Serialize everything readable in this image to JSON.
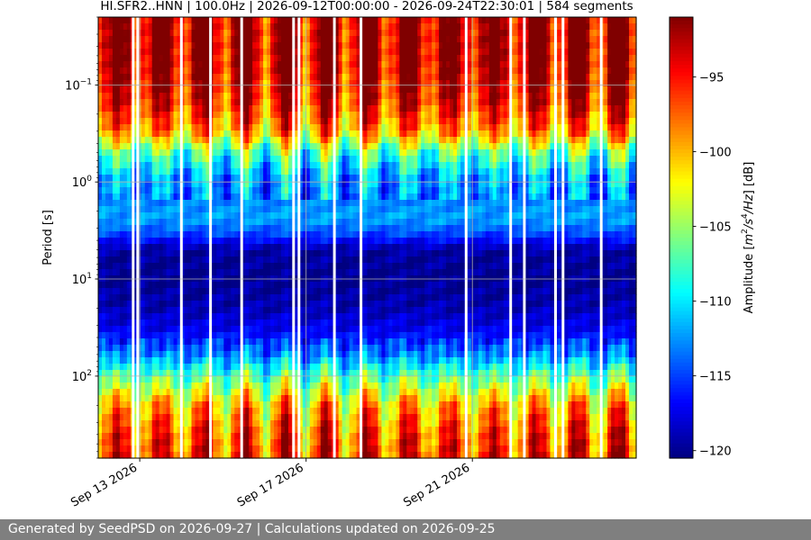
{
  "chart_data": {
    "type": "heatmap",
    "title": "HI.SFR2..HNN | 100.0Hz | 2026-09-12T00:00:00 - 2026-09-24T22:30:01 | 584 segments",
    "ylabel": "Period [s]",
    "y_scale": "log",
    "y_range": [
      0.02,
      700
    ],
    "y_ticks": [
      {
        "value": 0.1,
        "base": "10",
        "exp": "−1"
      },
      {
        "value": 1,
        "base": "10",
        "exp": "0"
      },
      {
        "value": 10,
        "base": "10",
        "exp": "1"
      },
      {
        "value": 100,
        "base": "10",
        "exp": "2"
      }
    ],
    "x_range_days": [
      0,
      12.94
    ],
    "x_ticks": [
      {
        "day": 1,
        "label": "Sep 13 2026"
      },
      {
        "day": 5,
        "label": "Sep 17 2026"
      },
      {
        "day": 9,
        "label": "Sep 21 2026"
      }
    ],
    "grid": true,
    "gaps_days": [
      0.84,
      0.95,
      2.0,
      2.7,
      3.45,
      4.7,
      4.83,
      5.68,
      6.32,
      8.85,
      9.92,
      10.25,
      11.0,
      11.18,
      12.1
    ],
    "colorbar": {
      "label_prefix": "Amplitude [",
      "label_suffix": "] [dB]",
      "unit_parts": [
        "m",
        "2",
        "/s",
        "4",
        "/Hz"
      ],
      "range": [
        -120.5,
        -91
      ],
      "ticks": [
        "−95",
        "−100",
        "−105",
        "−110",
        "−115",
        "−120"
      ],
      "tick_values": [
        -95,
        -100,
        -105,
        -110,
        -115,
        -120
      ],
      "colormap": "jet"
    },
    "spectral_profile": {
      "period": [
        0.02,
        0.04,
        0.07,
        0.15,
        0.3,
        0.5,
        0.9,
        1.5,
        2.4,
        3.5,
        5,
        10,
        20,
        35,
        60,
        100,
        200,
        400,
        700
      ],
      "amplitude_db": [
        -92.5,
        -92.5,
        -93,
        -95,
        -99,
        -107,
        -112,
        -113,
        -112,
        -115,
        -119.5,
        -120,
        -119,
        -117,
        -113,
        -107,
        -100,
        -97,
        -96
      ]
    }
  },
  "footer": {
    "text": "Generated by SeedPSD on 2026-09-27 | Calculations updated on 2026-09-25"
  }
}
